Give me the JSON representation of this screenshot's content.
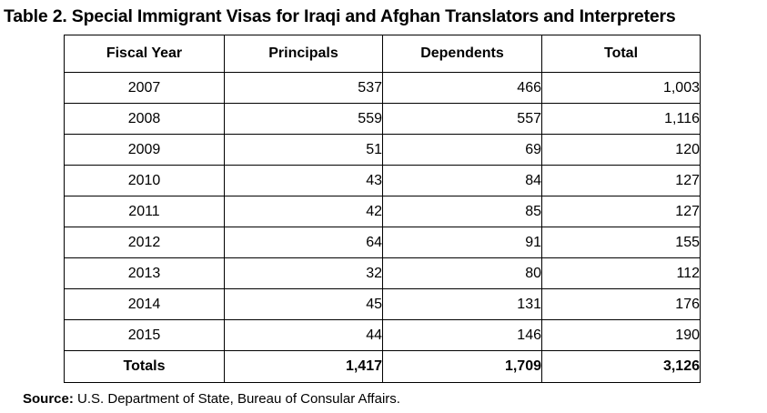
{
  "title": "Table 2. Special Immigrant Visas for Iraqi and Afghan Translators and Interpreters",
  "table": {
    "headers": [
      "Fiscal Year",
      "Principals",
      "Dependents",
      "Total"
    ],
    "rows": [
      {
        "year": "2007",
        "principals": "537",
        "dependents": "466",
        "total": "1,003"
      },
      {
        "year": "2008",
        "principals": "559",
        "dependents": "557",
        "total": "1,116"
      },
      {
        "year": "2009",
        "principals": "51",
        "dependents": "69",
        "total": "120"
      },
      {
        "year": "2010",
        "principals": "43",
        "dependents": "84",
        "total": "127"
      },
      {
        "year": "2011",
        "principals": "42",
        "dependents": "85",
        "total": "127"
      },
      {
        "year": "2012",
        "principals": "64",
        "dependents": "91",
        "total": "155"
      },
      {
        "year": "2013",
        "principals": "32",
        "dependents": "80",
        "total": "112"
      },
      {
        "year": "2014",
        "principals": "45",
        "dependents": "131",
        "total": "176"
      },
      {
        "year": "2015",
        "principals": "44",
        "dependents": "146",
        "total": "190"
      }
    ],
    "totals": {
      "label": "Totals",
      "principals": "1,417",
      "dependents": "1,709",
      "total": "3,126"
    }
  },
  "source": {
    "label": "Source:",
    "text": "U.S. Department of State, Bureau of Consular Affairs."
  }
}
